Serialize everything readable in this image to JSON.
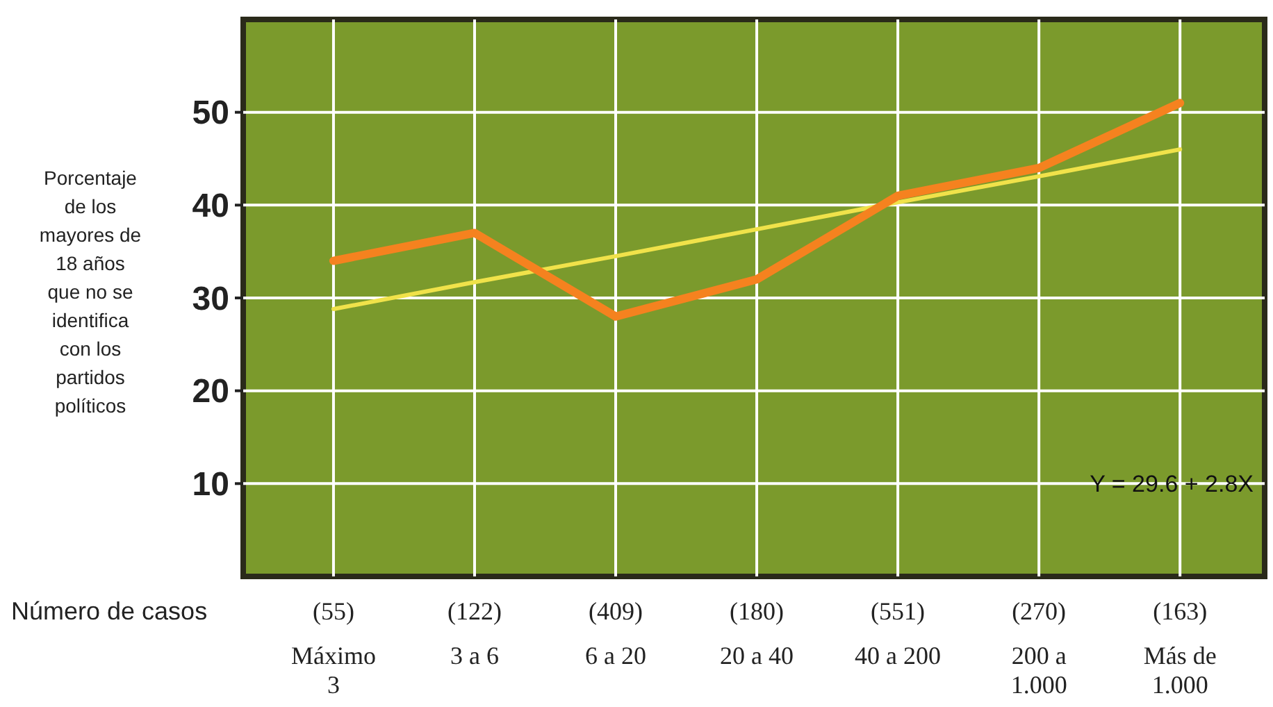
{
  "chart_data": {
    "type": "line",
    "xlabel": "Número de casos",
    "ylabel": "Porcentaje de los mayores de 18 años que no se identifica con los partidos políticos",
    "categories": [
      "(55)\nMáximo\n3",
      "(122)\n3 a 6",
      "(409)\n6 a 20",
      "(180)\n20 a 40",
      "(551)\n40 a 200",
      "(270)\n200 a\n1.000",
      "(163)\nMás de\n1.000"
    ],
    "series": [
      {
        "color": "#f0e24a",
        "values": [
          28.8,
          31.7,
          34.5,
          37.4,
          40.3,
          43.1,
          46.0
        ]
      },
      {
        "color": "#f5821f",
        "values": [
          34,
          37,
          28,
          32,
          41,
          44,
          51
        ]
      }
    ],
    "ylim": [
      0,
      60
    ],
    "yticks": [
      10,
      20,
      30,
      40,
      50
    ],
    "grid": true,
    "annotations": [
      "Y = 29.6 + 2.8X"
    ]
  }
}
